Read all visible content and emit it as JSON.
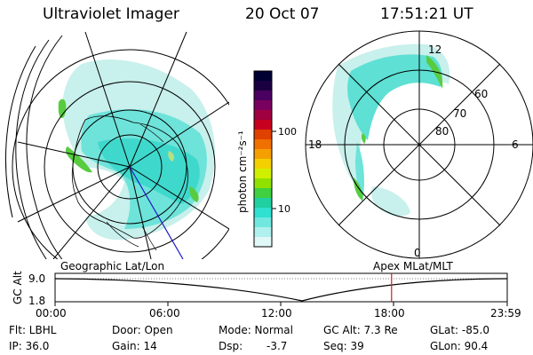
{
  "header": {
    "instrument": "Ultraviolet Imager",
    "date": "20 Oct 07",
    "time": "17:51:21 UT"
  },
  "colorbar": {
    "label": "photon cm⁻²s⁻¹",
    "ticks": [
      "100",
      "10"
    ],
    "colors": [
      "#000033",
      "#1a0040",
      "#4a0060",
      "#7a0060",
      "#a00040",
      "#c80020",
      "#e04000",
      "#f07000",
      "#f5a000",
      "#f5d000",
      "#d0f000",
      "#90e000",
      "#40d040",
      "#20d0a0",
      "#30e0d0",
      "#70e8e0",
      "#b0f0ee",
      "#e0f8f8"
    ]
  },
  "right_plot": {
    "mlt_labels": {
      "top": "12",
      "left": "18",
      "right": "6",
      "bottom": "0"
    },
    "lat_labels": [
      "60",
      "70",
      "80"
    ]
  },
  "timeline": {
    "ylabel": "GC Alt",
    "left_label": "Geographic Lat/Lon",
    "right_label": "Apex  MLat/MLT",
    "yticks": [
      "9.0",
      "1.8"
    ],
    "xticks": [
      "00:00",
      "06:00",
      "12:00",
      "18:00",
      "23:59"
    ],
    "marker_hour": 17.86
  },
  "footer": {
    "col1": [
      "Flt: LBHL",
      "IP: 36.0"
    ],
    "col2": [
      "Door: Open",
      "Gain: 14"
    ],
    "col3a": [
      "Mode: Normal",
      "Dsp:"
    ],
    "col3b": [
      "",
      "-3.7"
    ],
    "col4": [
      "GC Alt: 7.3 Re",
      "Seq: 39"
    ],
    "col5": [
      "GLat: -85.0",
      "GLon:  90.4"
    ]
  }
}
